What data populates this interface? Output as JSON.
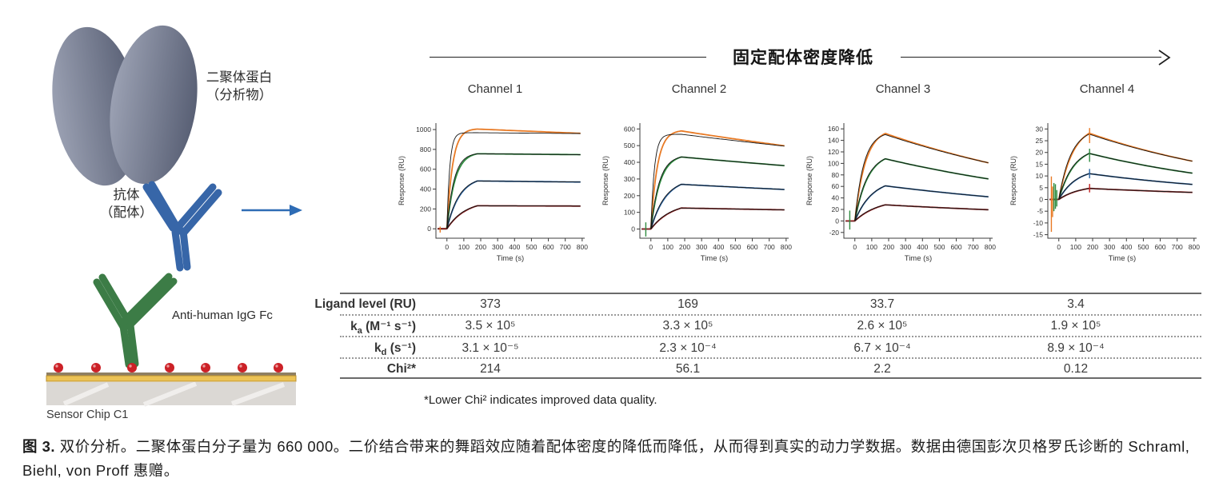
{
  "header": {
    "density_label": "固定配体密度降低"
  },
  "illustration": {
    "analyte_line1": "二聚体蛋白",
    "analyte_line2": "（分析物）",
    "ligand_line1": "抗体",
    "ligand_line2": "（配体）",
    "capture_label": "Anti-human IgG Fc",
    "chip_label": "Sensor Chip C1"
  },
  "colors": {
    "curve_orange": "#e87a25",
    "curve_green": "#2e8b3f",
    "curve_blue": "#2d66a4",
    "curve_dark_red": "#8b1f1f",
    "fit_black": "#141414",
    "arrow_blue": "#2e6cb5",
    "antibody_blue": "#3766a8",
    "antibody_green": "#3c7c46",
    "protein_gray_light": "#9aa0b2",
    "protein_gray_dark": "#596075",
    "dot_red": "#cc2127",
    "chip_gold": "#ecc254",
    "chip_slab": "#dbd8d4",
    "chip_tan": "#8f7f62"
  },
  "chart_data": [
    {
      "type": "line",
      "title": "Channel 1",
      "xlabel": "Time (s)",
      "ylabel": "Response (RU)",
      "xlim": [
        -65,
        815
      ],
      "ylim": [
        -95,
        1065
      ],
      "xticks": [
        0,
        100,
        200,
        300,
        400,
        500,
        600,
        700,
        800
      ],
      "yticks": [
        0,
        200,
        400,
        600,
        800,
        1000
      ],
      "t_inject": 0,
      "t_stop": 180,
      "t_end": 790,
      "grid": false,
      "legend": false,
      "series": [
        {
          "name": "conc-1",
          "color": "#e87a25",
          "peak": 1005,
          "end": 962,
          "rise": 0.03,
          "fit": {
            "peak": 968,
            "end": 960,
            "rise": 0.06
          }
        },
        {
          "name": "conc-2",
          "color": "#2e8b3f",
          "peak": 756,
          "end": 747,
          "rise": 0.021,
          "fit": {
            "peak": 756,
            "end": 747,
            "rise": 0.024
          }
        },
        {
          "name": "conc-3",
          "color": "#2d66a4",
          "peak": 482,
          "end": 471,
          "rise": 0.013,
          "fit": {
            "peak": 482,
            "end": 471,
            "rise": 0.014
          }
        },
        {
          "name": "conc-4",
          "color": "#8b1f1f",
          "peak": 232,
          "end": 229,
          "rise": 0.009,
          "fit": {
            "peak": 232,
            "end": 229,
            "rise": 0.01
          }
        }
      ],
      "spikes": [
        {
          "x": -40,
          "y1": -38,
          "y2": 22,
          "color": "#e87a25"
        }
      ]
    },
    {
      "type": "line",
      "title": "Channel 2",
      "xlabel": "Time (s)",
      "ylabel": "Response (RU)",
      "xlim": [
        -65,
        815
      ],
      "ylim": [
        -55,
        635
      ],
      "xticks": [
        0,
        100,
        200,
        300,
        400,
        500,
        600,
        700,
        800
      ],
      "yticks": [
        0,
        100,
        200,
        300,
        400,
        500,
        600
      ],
      "t_inject": 0,
      "t_stop": 180,
      "t_end": 790,
      "grid": false,
      "legend": false,
      "series": [
        {
          "name": "conc-1",
          "color": "#e87a25",
          "peak": 588,
          "end": 499,
          "rise": 0.026,
          "fit": {
            "peak": 568,
            "end": 497,
            "rise": 0.048
          }
        },
        {
          "name": "conc-2",
          "color": "#2e8b3f",
          "peak": 432,
          "end": 380,
          "rise": 0.018,
          "fit": {
            "peak": 432,
            "end": 380,
            "rise": 0.02
          }
        },
        {
          "name": "conc-3",
          "color": "#2d66a4",
          "peak": 268,
          "end": 237,
          "rise": 0.011,
          "fit": {
            "peak": 268,
            "end": 237,
            "rise": 0.012
          }
        },
        {
          "name": "conc-4",
          "color": "#8b1f1f",
          "peak": 126,
          "end": 115,
          "rise": 0.008,
          "fit": {
            "peak": 126,
            "end": 115,
            "rise": 0.009
          }
        }
      ],
      "spikes": [
        {
          "x": -30,
          "y1": -45,
          "y2": 40,
          "color": "#2e8b3f"
        }
      ]
    },
    {
      "type": "line",
      "title": "Channel 3",
      "xlabel": "Time (s)",
      "ylabel": "Response (RU)",
      "xlim": [
        -65,
        815
      ],
      "ylim": [
        -30,
        170
      ],
      "xticks": [
        0,
        100,
        200,
        300,
        400,
        500,
        600,
        700,
        800
      ],
      "yticks": [
        -20,
        0,
        20,
        40,
        60,
        80,
        100,
        120,
        140,
        160
      ],
      "t_inject": 0,
      "t_stop": 180,
      "t_end": 790,
      "grid": false,
      "legend": false,
      "series": [
        {
          "name": "conc-1",
          "color": "#e87a25",
          "peak": 152,
          "end": 101,
          "rise": 0.016,
          "fit": {
            "peak": 150,
            "end": 101,
            "rise": 0.019
          }
        },
        {
          "name": "conc-2",
          "color": "#2e8b3f",
          "peak": 108,
          "end": 73,
          "rise": 0.013,
          "fit": {
            "peak": 108,
            "end": 73,
            "rise": 0.014
          }
        },
        {
          "name": "conc-3",
          "color": "#2d66a4",
          "peak": 61,
          "end": 42,
          "rise": 0.0095,
          "fit": {
            "peak": 61,
            "end": 42,
            "rise": 0.01
          }
        },
        {
          "name": "conc-4",
          "color": "#8b1f1f",
          "peak": 28,
          "end": 19.5,
          "rise": 0.007,
          "fit": {
            "peak": 28,
            "end": 19.5,
            "rise": 0.008
          }
        }
      ],
      "spikes": [
        {
          "x": -30,
          "y1": -15,
          "y2": 18,
          "color": "#2e8b3f"
        }
      ]
    },
    {
      "type": "line",
      "title": "Channel 4",
      "xlabel": "Time (s)",
      "ylabel": "Response (RU)",
      "xlim": [
        -65,
        815
      ],
      "ylim": [
        -16.5,
        32.5
      ],
      "xticks": [
        0,
        100,
        200,
        300,
        400,
        500,
        600,
        700,
        800
      ],
      "yticks": [
        -15,
        -10,
        -5,
        0,
        5,
        10,
        15,
        20,
        25,
        30
      ],
      "t_inject": 0,
      "t_stop": 180,
      "t_end": 790,
      "grid": false,
      "legend": false,
      "series": [
        {
          "name": "conc-1",
          "color": "#e87a25",
          "peak": 28.2,
          "end": 16.3,
          "rise": 0.012,
          "fit": {
            "peak": 27.8,
            "end": 16.3,
            "rise": 0.014
          }
        },
        {
          "name": "conc-2",
          "color": "#2e8b3f",
          "peak": 19.6,
          "end": 11.2,
          "rise": 0.011,
          "fit": {
            "peak": 19.6,
            "end": 11.2,
            "rise": 0.012
          }
        },
        {
          "name": "conc-3",
          "color": "#2d66a4",
          "peak": 11,
          "end": 6.4,
          "rise": 0.0095,
          "fit": {
            "peak": 11,
            "end": 6.4,
            "rise": 0.01
          }
        },
        {
          "name": "conc-4",
          "color": "#8b1f1f",
          "peak": 4.7,
          "end": 3.0,
          "rise": 0.008,
          "fit": {
            "peak": 4.7,
            "end": 3.0,
            "rise": 0.009
          }
        }
      ],
      "spikes": [
        {
          "x": -44,
          "y1": -13.8,
          "y2": 9.8,
          "color": "#e87a25"
        },
        {
          "x": -37,
          "y1": -7.5,
          "y2": 5.5,
          "color": "#e87a25"
        },
        {
          "x": -29,
          "y1": -5,
          "y2": 7,
          "color": "#2e8b3f"
        },
        {
          "x": -20,
          "y1": -4,
          "y2": 6.5,
          "color": "#2e8b3f"
        },
        {
          "x": -12,
          "y1": -3,
          "y2": 4,
          "color": "#2e8b3f"
        },
        {
          "x": 182,
          "y1": 24,
          "y2": 30.4,
          "color": "#e87a25"
        },
        {
          "x": 182,
          "y1": 16,
          "y2": 21.6,
          "color": "#2e8b3f"
        },
        {
          "x": 182,
          "y1": 9,
          "y2": 13,
          "color": "#2d66a4"
        },
        {
          "x": 182,
          "y1": 3,
          "y2": 6.6,
          "color": "#c22020"
        }
      ]
    }
  ],
  "table": {
    "row_labels": [
      {
        "base": "Ligand level (RU)",
        "sub": "",
        "rest": ""
      },
      {
        "base": "k",
        "sub": "a",
        "rest": " (M⁻¹ s⁻¹)"
      },
      {
        "base": "k",
        "sub": "d",
        "rest": " (s⁻¹)"
      },
      {
        "base": "Chi²*",
        "sub": "",
        "rest": ""
      }
    ],
    "rows": [
      [
        "373",
        "169",
        "33.7",
        "3.4"
      ],
      [
        "3.5 × 10⁵",
        "3.3 × 10⁵",
        "2.6 × 10⁵",
        "1.9 × 10⁵"
      ],
      [
        "3.1 × 10⁻⁵",
        "2.3 × 10⁻⁴",
        "6.7 × 10⁻⁴",
        "8.9 × 10⁻⁴"
      ],
      [
        "214",
        "56.1",
        "2.2",
        "0.12"
      ]
    ],
    "footnote": "*Lower Chi² indicates improved data quality."
  },
  "caption": {
    "label": "图 3.",
    "text": " 双价分析。二聚体蛋白分子量为 660 000。二价结合带来的舞蹈效应随着配体密度的降低而降低，从而得到真实的动力学数据。数据由德国彭次贝格罗氏诊断的 Schraml, Biehl, von Proff 惠赠。"
  }
}
